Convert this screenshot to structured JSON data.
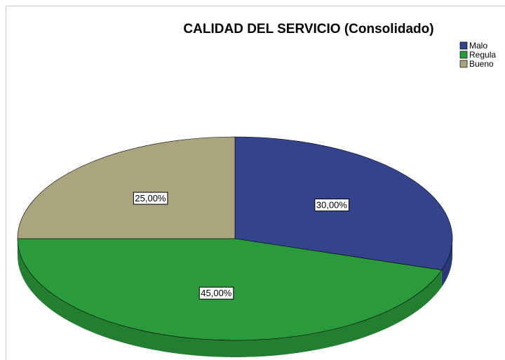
{
  "chart_data": {
    "type": "pie",
    "title": "CALIDAD DEL SERVICIO (Consolidado)",
    "categories": [
      "Malo",
      "Regula",
      "Bueno"
    ],
    "values": [
      30,
      45,
      25
    ],
    "value_labels": [
      "30,00%",
      "45,00%",
      "25,00%"
    ],
    "colors": [
      "#33448c",
      "#2b9a3c",
      "#aaa57e"
    ],
    "legend": "top-right"
  }
}
